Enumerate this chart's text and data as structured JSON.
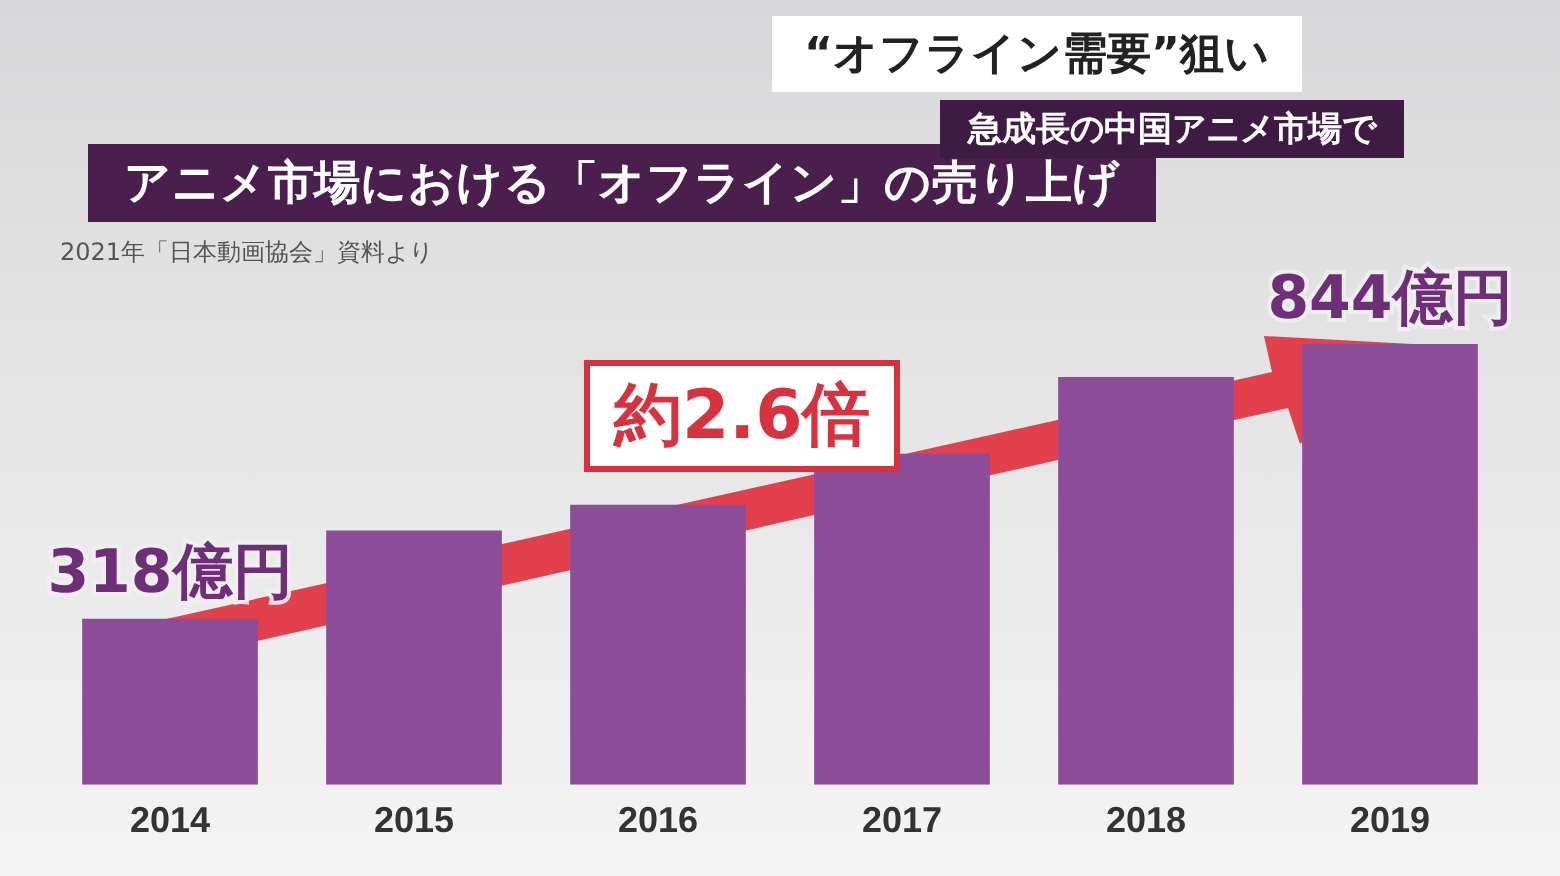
{
  "chart_data": {
    "type": "bar",
    "title": "アニメ市場における「オフライン」の売り上げ",
    "categories": [
      "2014",
      "2015",
      "2016",
      "2017",
      "2018",
      "2019"
    ],
    "values": [
      318,
      487,
      536,
      634,
      781,
      844
    ],
    "value_labels": [
      "318億円",
      null,
      null,
      null,
      null,
      "844億円"
    ],
    "tick_labels": "x",
    "color": "#8d4c9a",
    "grid": false,
    "legend": false,
    "annotations": [
      "“オフライン需要”狙い",
      "急成長の中国アニメ市場で",
      "2021年「日本動画協会」資料より",
      "約2.6倍"
    ]
  }
}
